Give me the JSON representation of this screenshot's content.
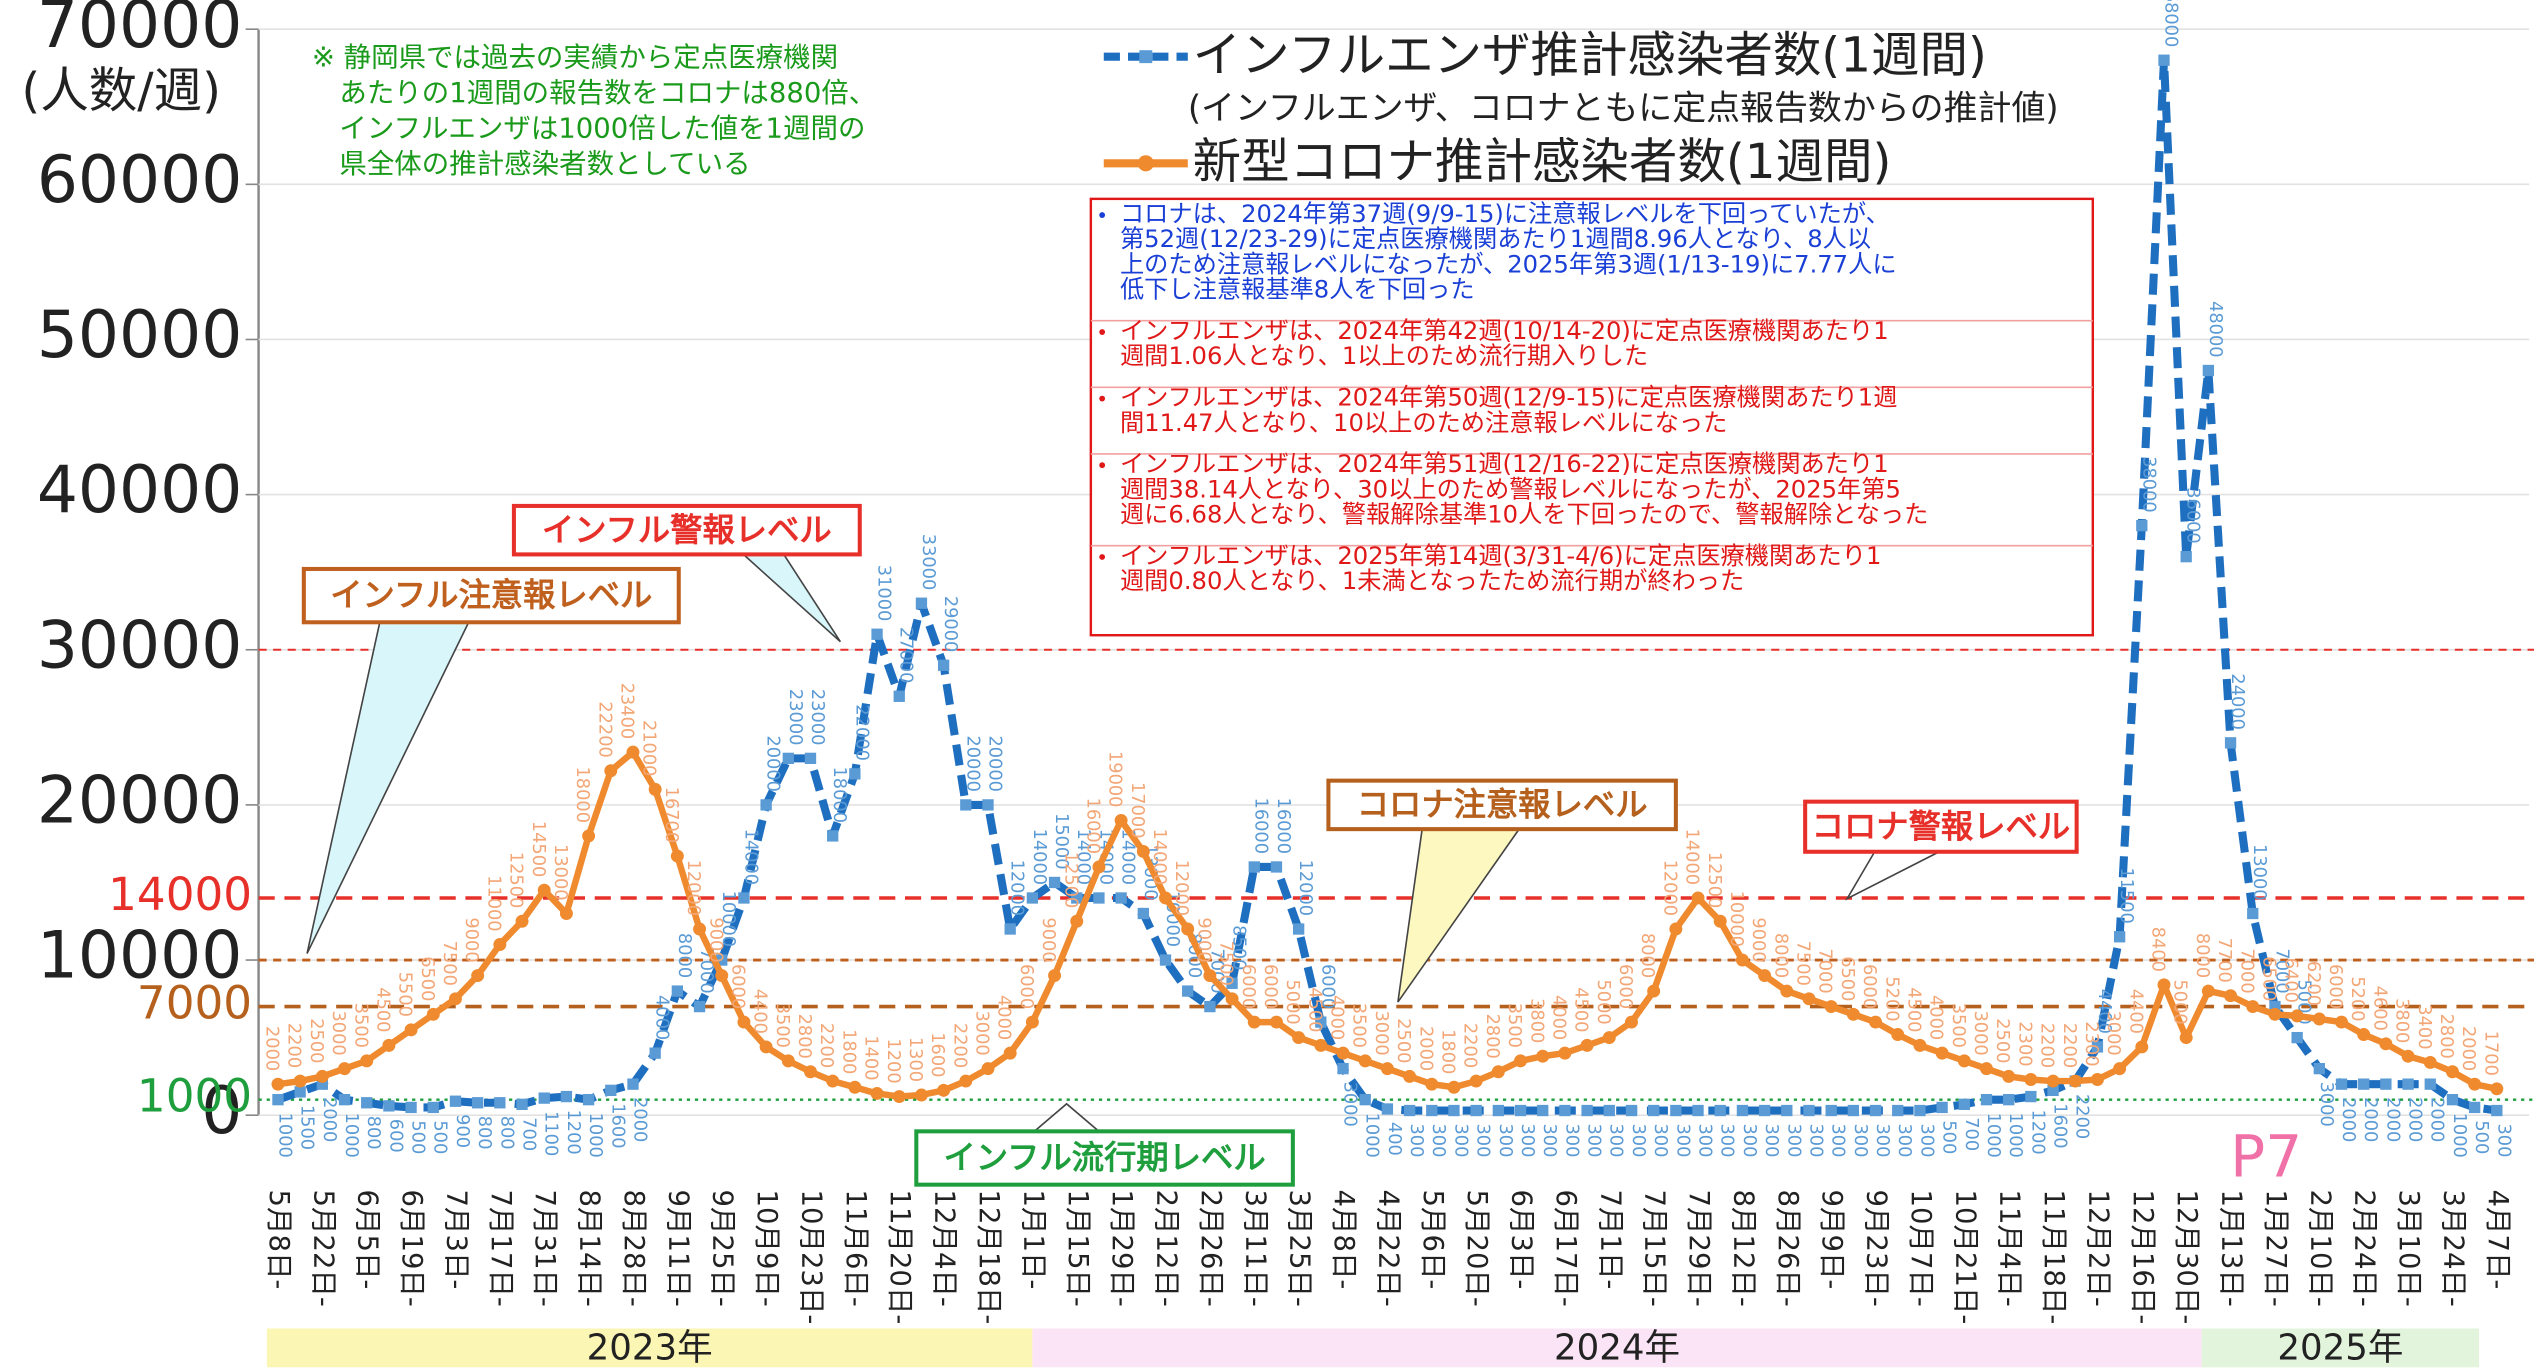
{
  "chart_data": {
    "type": "line",
    "ylabel": "(人数/週)",
    "categories": [
      "5月8日-",
      null,
      "5月22日-",
      null,
      "6月5日-",
      null,
      "6月19日-",
      null,
      "7月3日-",
      null,
      "7月17日-",
      null,
      "7月31日-",
      null,
      "8月14日-",
      null,
      "8月28日-",
      null,
      "9月11日-",
      null,
      "9月25日-",
      null,
      "10月9日-",
      null,
      "10月23日-",
      null,
      "11月6日-",
      null,
      "11月20日-",
      null,
      "12月4日-",
      null,
      "12月18日-",
      null,
      "1月1日-",
      null,
      "1月15日-",
      null,
      "1月29日-",
      null,
      "2月12日-",
      null,
      "2月26日-",
      null,
      "3月11日-",
      null,
      "3月25日-",
      null,
      "4月8日-",
      null,
      "4月22日-",
      null,
      "5月6日-",
      null,
      "5月20日-",
      null,
      "6月3日-",
      null,
      "6月17日-",
      null,
      "7月1日-",
      null,
      "7月15日-",
      null,
      "7月29日-",
      null,
      "8月12日-",
      null,
      "8月26日-",
      null,
      "9月9日-",
      null,
      "9月23日-",
      null,
      "10月7日-",
      null,
      "10月21日-",
      null,
      "11月4日-",
      null,
      "11月18日-",
      null,
      "12月2日-",
      null,
      "12月16日-",
      null,
      "12月30日-",
      null,
      "1月13日-",
      null,
      "1月27日-",
      null,
      "2月10日-",
      null,
      "2月24日-",
      null,
      "3月10日-",
      null,
      "3月24日-",
      null,
      "4月7日-"
    ],
    "series": [
      {
        "name": "インフルエンザ推計感染者数(1週間)",
        "color": "#1f6fc1",
        "marker_color": "#5b9bd5",
        "values": [
          1000,
          1500,
          2000,
          1000,
          800,
          600,
          500,
          500,
          900,
          800,
          800,
          700,
          1100,
          1200,
          1000,
          1600,
          2000,
          4000,
          8000,
          7000,
          10000,
          14000,
          20000,
          23000,
          23000,
          18000,
          22000,
          31000,
          27000,
          33000,
          29000,
          20000,
          20000,
          12000,
          14000,
          15000,
          14000,
          14000,
          14000,
          13000,
          10000,
          8000,
          7000,
          8500,
          16000,
          16000,
          12000,
          6000,
          3000,
          1000,
          400,
          300,
          300,
          300,
          300,
          300,
          300,
          300,
          300,
          300,
          300,
          300,
          300,
          300,
          300,
          300,
          300,
          300,
          300,
          300,
          300,
          300,
          300,
          300,
          300,
          500,
          700,
          1000,
          1000,
          1200,
          1600,
          2200,
          4400,
          11500,
          38000,
          68000,
          36000,
          48000,
          24000,
          13000,
          7000,
          5000,
          3000,
          2000,
          2000,
          2000,
          2000,
          2000,
          1000,
          500,
          300
        ]
      },
      {
        "name": "新型コロナ推計感染者数(1週間)",
        "color": "#ef8a2e",
        "marker_color": "#ef8a2e",
        "values": [
          2000,
          2200,
          2500,
          3000,
          3500,
          4500,
          5500,
          6500,
          7500,
          9000,
          11000,
          12500,
          14500,
          13000,
          18000,
          22200,
          23400,
          21000,
          16700,
          12000,
          9000,
          6000,
          4400,
          3500,
          2800,
          2200,
          1800,
          1400,
          1200,
          1300,
          1600,
          2200,
          3000,
          4000,
          6000,
          9000,
          12500,
          16000,
          19000,
          17000,
          14000,
          12000,
          9000,
          7500,
          6000,
          6000,
          5000,
          4500,
          4000,
          3500,
          3000,
          2500,
          2000,
          1800,
          2200,
          2800,
          3500,
          3800,
          4000,
          4500,
          5000,
          6000,
          8000,
          12000,
          14000,
          12500,
          10000,
          9000,
          8000,
          7500,
          7000,
          6500,
          6000,
          5200,
          4500,
          4000,
          3500,
          3000,
          2500,
          2300,
          2200,
          2200,
          2300,
          3000,
          4400,
          8400,
          5000,
          8000,
          7700,
          7000,
          6500,
          6400,
          6200,
          6000,
          5200,
          4600,
          3800,
          3400,
          2800,
          2000,
          1700
        ]
      }
    ],
    "legend_subtitle": "(インフルエンザ、コロナともに定点報告数からの推計値)",
    "ylim": [
      0,
      70000
    ],
    "yticks": [
      0,
      10000,
      20000,
      30000,
      40000,
      50000,
      60000,
      70000
    ],
    "grid": true,
    "reference_lines": [
      {
        "value": 30000,
        "label": "インフル警報レベル",
        "color": "#e8302a",
        "show_tick": false
      },
      {
        "value": 10000,
        "label": "インフル注意報レベル",
        "color": "#c0601e",
        "show_tick": false
      },
      {
        "value": 14000,
        "label": "コロナ警報レベル",
        "color": "#e8302a",
        "show_tick": true
      },
      {
        "value": 7000,
        "label": "コロナ注意報レベル",
        "color": "#b5601d",
        "show_tick": true
      },
      {
        "value": 1000,
        "label": "インフル流行期レベル",
        "color": "#1e9e3c",
        "show_tick": true
      }
    ],
    "note": [
      "※ 静岡県では過去の実績から定点医療機関",
      "あたりの1週間の報告数をコロナは880倍、",
      "インフルエンザは1000倍した値を1週間の",
      "県全体の推計感染者数としている"
    ],
    "annotations": [
      {
        "color": "#1a3fd6",
        "lines": [
          "コロナは、2024年第37週(9/9-15)に注意報レベルを下回っていたが、",
          "第52週(12/23-29)に定点医療機関あたり1週間8.96人となり、8人以",
          "上のため注意報レベルになったが、2025年第3週(1/13-19)に7.77人に",
          "低下し注意報基準8人を下回った"
        ]
      },
      {
        "color": "#e01818",
        "lines": [
          "インフルエンザは、2024年第42週(10/14-20)に定点医療機関あたり1",
          "週間1.06人となり、1以上のため流行期入りした"
        ]
      },
      {
        "color": "#e01818",
        "lines": [
          "インフルエンザは、2024年第50週(12/9-15)に定点医療機関あたり1週",
          "間11.47人となり、10以上のため注意報レベルになった"
        ]
      },
      {
        "color": "#e01818",
        "lines": [
          "インフルエンザは、2024年第51週(12/16-22)に定点医療機関あたり1",
          "週間38.14人となり、30以上のため警報レベルになったが、2025年第5",
          "週に6.68人となり、警報解除基準10人を下回ったので、警報解除となった"
        ]
      },
      {
        "color": "#e01818",
        "lines": [
          "インフルエンザは、2025年第14週(3/31-4/6)に定点医療機関あたり1",
          "週間0.80人となり、1未満となったため流行期が終わった"
        ]
      }
    ],
    "year_bands": [
      {
        "label": "2023年",
        "color": "#fbf6b4"
      },
      {
        "label": "2024年",
        "color": "#fbe4f5"
      },
      {
        "label": "2025年",
        "color": "#e2f4dc"
      }
    ],
    "page_label": "P7"
  }
}
